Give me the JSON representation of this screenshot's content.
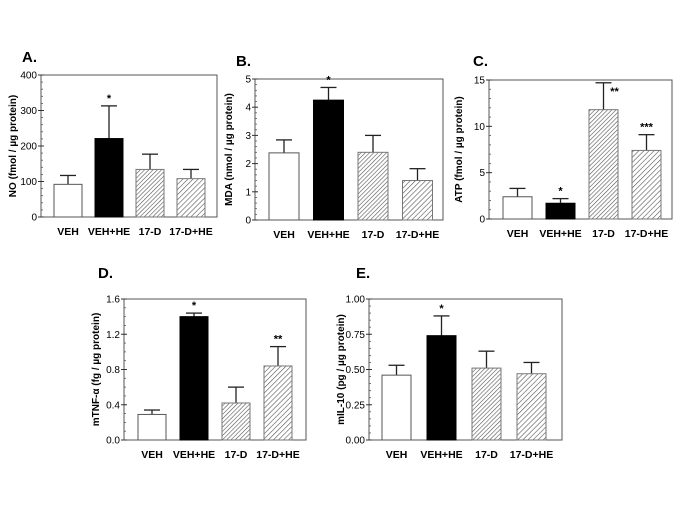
{
  "chart_data": [
    {
      "panel": "A.",
      "type": "bar",
      "categories": [
        "VEH",
        "VEH+HE",
        "17-D",
        "17-D+HE"
      ],
      "values": [
        92,
        221,
        134,
        108
      ],
      "error_upper": [
        117,
        313,
        177,
        134
      ],
      "significance": [
        "",
        "*",
        "",
        ""
      ],
      "ylabel": "NO (fmol / µg protein)",
      "ylim": [
        0,
        400
      ],
      "yticks": [
        0,
        100,
        200,
        300,
        400
      ],
      "ytick_labels": [
        "0",
        "100",
        "200",
        "300",
        "400"
      ],
      "minor_step": 20,
      "fills": [
        "white",
        "black",
        "hatch-dense",
        "hatch"
      ]
    },
    {
      "panel": "B.",
      "type": "bar",
      "categories": [
        "VEH",
        "VEH+HE",
        "17-D",
        "17-D+HE"
      ],
      "values": [
        2.38,
        4.25,
        2.4,
        1.4
      ],
      "error_upper": [
        2.84,
        4.7,
        3.0,
        1.82
      ],
      "significance": [
        "",
        "*",
        "",
        ""
      ],
      "ylabel": "MDA (nmol / µg protein)",
      "ylim": [
        0,
        5
      ],
      "yticks": [
        0,
        1,
        2,
        3,
        4,
        5
      ],
      "ytick_labels": [
        "0",
        "1",
        "2",
        "3",
        "4",
        "5"
      ],
      "minor_step": 0.2,
      "fills": [
        "white",
        "black",
        "hatch-dense",
        "hatch"
      ]
    },
    {
      "panel": "C.",
      "type": "bar",
      "categories": [
        "VEH",
        "VEH+HE",
        "17-D",
        "17-D+HE"
      ],
      "values": [
        2.4,
        1.7,
        11.8,
        7.4
      ],
      "error_upper": [
        3.3,
        2.2,
        14.7,
        9.1
      ],
      "significance": [
        "",
        "*",
        "**",
        "***"
      ],
      "ylabel": "ATP (fmol / µg protein)",
      "ylim": [
        0,
        15
      ],
      "yticks": [
        0,
        5,
        10,
        15
      ],
      "ytick_labels": [
        "0",
        "5",
        "10",
        "15"
      ],
      "minor_step": 1,
      "fills": [
        "white",
        "black",
        "hatch-dense",
        "hatch"
      ]
    },
    {
      "panel": "D.",
      "type": "bar",
      "categories": [
        "VEH",
        "VEH+HE",
        "17-D",
        "17-D+HE"
      ],
      "values": [
        0.29,
        1.4,
        0.42,
        0.84
      ],
      "error_upper": [
        0.34,
        1.44,
        0.6,
        1.06
      ],
      "significance": [
        "",
        "*",
        "",
        "**"
      ],
      "ylabel": "mTNF-α (fg / µg protein)",
      "ylim": [
        0,
        1.6
      ],
      "yticks": [
        0,
        0.4,
        0.8,
        1.2,
        1.6
      ],
      "ytick_labels": [
        "0.0",
        "0.4",
        "0.8",
        "1.2",
        "1.6"
      ],
      "minor_step": 0.1,
      "fills": [
        "white",
        "black",
        "hatch-dense",
        "hatch"
      ]
    },
    {
      "panel": "E.",
      "type": "bar",
      "categories": [
        "VEH",
        "VEH+HE",
        "17-D",
        "17-D+HE"
      ],
      "values": [
        0.46,
        0.74,
        0.51,
        0.47
      ],
      "error_upper": [
        0.53,
        0.88,
        0.63,
        0.55
      ],
      "significance": [
        "",
        "*",
        "",
        ""
      ],
      "ylabel": "mIL-10 (pg / µg protein)",
      "ylim": [
        0,
        1.0
      ],
      "yticks": [
        0,
        0.25,
        0.5,
        0.75,
        1.0
      ],
      "ytick_labels": [
        "0.00",
        "0.25",
        "0.50",
        "0.75",
        "1.00"
      ],
      "minor_step": 0.05,
      "fills": [
        "white",
        "black",
        "hatch-dense",
        "hatch"
      ]
    }
  ]
}
